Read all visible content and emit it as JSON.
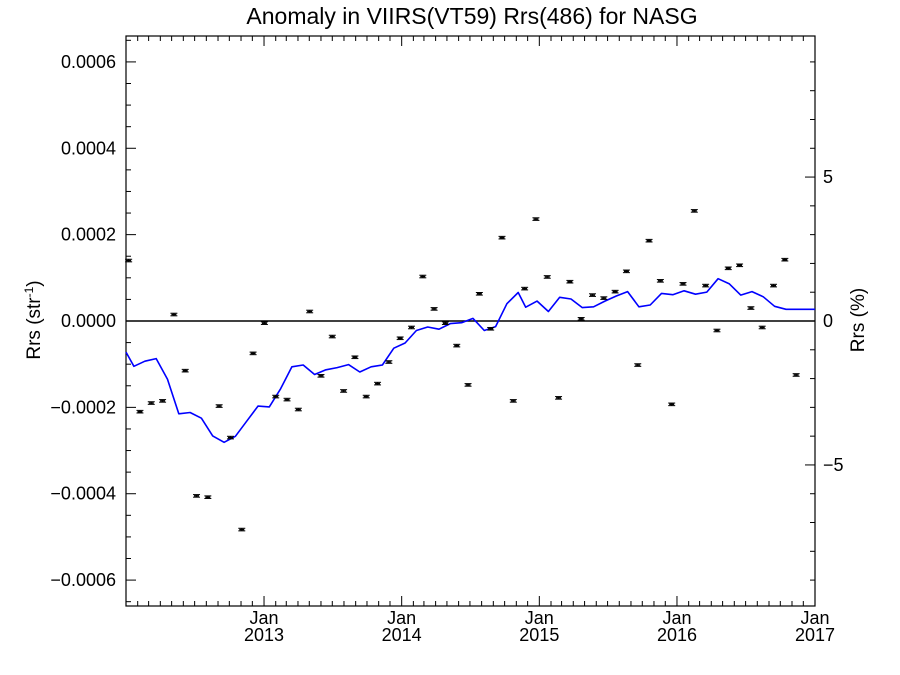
{
  "chart_data": {
    "type": "scatter",
    "title": "Anomaly in VIIRS(VT59) Rrs(486) for NASG",
    "ylabel": "Rrs (str",
    "ylabel_superscript": "-1",
    "ylabel_close": ")",
    "y2label": "Rrs (%)",
    "xlim": [
      "2012-01-01",
      "2017-01-01"
    ],
    "ylim": [
      -0.00066,
      0.00066
    ],
    "y2lim": [
      -9.9,
      9.9
    ],
    "yticks": [
      {
        "value": -0.0006,
        "label": "−0.0006"
      },
      {
        "value": -0.0004,
        "label": "−0.0004"
      },
      {
        "value": -0.0002,
        "label": "−0.0002"
      },
      {
        "value": 0.0,
        "label": "0.0000"
      },
      {
        "value": 0.0002,
        "label": "0.0002"
      },
      {
        "value": 0.0004,
        "label": "0.0004"
      },
      {
        "value": 0.0006,
        "label": "0.0006"
      }
    ],
    "y2ticks": [
      {
        "value": -5,
        "label": "−5"
      },
      {
        "value": 0,
        "label": "0"
      },
      {
        "value": 5,
        "label": "5"
      }
    ],
    "xticks": [
      {
        "value": "2013-01-01",
        "month": "Jan",
        "year": "2013"
      },
      {
        "value": "2014-01-01",
        "month": "Jan",
        "year": "2014"
      },
      {
        "value": "2015-01-01",
        "month": "Jan",
        "year": "2015"
      },
      {
        "value": "2016-01-01",
        "month": "Jan",
        "year": "2016"
      },
      {
        "value": "2017-01-01",
        "month": "Jan",
        "year": "2017"
      }
    ],
    "zero_line": true,
    "grid": false,
    "series": [
      {
        "type": "scatter",
        "color": "#000000",
        "errorbar_half": 3e-06,
        "points": [
          {
            "x": "2012-01-08",
            "y": 0.00014
          },
          {
            "x": "2012-02-07",
            "y": -0.00021
          },
          {
            "x": "2012-03-08",
            "y": -0.00019
          },
          {
            "x": "2012-04-07",
            "y": -0.000185
          },
          {
            "x": "2012-05-07",
            "y": 1.5e-05
          },
          {
            "x": "2012-06-06",
            "y": -0.000115
          },
          {
            "x": "2012-07-06",
            "y": -0.000405
          },
          {
            "x": "2012-08-05",
            "y": -0.000408
          },
          {
            "x": "2012-09-04",
            "y": -0.000197
          },
          {
            "x": "2012-10-04",
            "y": -0.00027
          },
          {
            "x": "2012-11-03",
            "y": -0.000483
          },
          {
            "x": "2012-12-03",
            "y": -7.5e-05
          },
          {
            "x": "2013-01-02",
            "y": -5e-06
          },
          {
            "x": "2013-02-01",
            "y": -0.000175
          },
          {
            "x": "2013-03-03",
            "y": -0.000182
          },
          {
            "x": "2013-04-02",
            "y": -0.000205
          },
          {
            "x": "2013-05-02",
            "y": 2.2e-05
          },
          {
            "x": "2013-06-01",
            "y": -0.000127
          },
          {
            "x": "2013-07-01",
            "y": -3.6e-05
          },
          {
            "x": "2013-07-31",
            "y": -0.000162
          },
          {
            "x": "2013-08-30",
            "y": -8.4e-05
          },
          {
            "x": "2013-09-29",
            "y": -0.000175
          },
          {
            "x": "2013-10-29",
            "y": -0.000145
          },
          {
            "x": "2013-11-28",
            "y": -9.5e-05
          },
          {
            "x": "2013-12-28",
            "y": -4e-05
          },
          {
            "x": "2014-01-27",
            "y": -1.5e-05
          },
          {
            "x": "2014-02-26",
            "y": 0.000103
          },
          {
            "x": "2014-03-28",
            "y": 2.8e-05
          },
          {
            "x": "2014-04-27",
            "y": -5e-06
          },
          {
            "x": "2014-05-27",
            "y": -5.7e-05
          },
          {
            "x": "2014-06-26",
            "y": -0.000148
          },
          {
            "x": "2014-07-26",
            "y": 6.3e-05
          },
          {
            "x": "2014-08-25",
            "y": -1.8e-05
          },
          {
            "x": "2014-09-24",
            "y": 0.000193
          },
          {
            "x": "2014-10-24",
            "y": -0.000185
          },
          {
            "x": "2014-11-23",
            "y": 7.5e-05
          },
          {
            "x": "2014-12-23",
            "y": 0.000236
          },
          {
            "x": "2015-01-22",
            "y": 0.000102
          },
          {
            "x": "2015-02-21",
            "y": -0.000178
          },
          {
            "x": "2015-03-23",
            "y": 9.1e-05
          },
          {
            "x": "2015-04-22",
            "y": 5e-06
          },
          {
            "x": "2015-05-22",
            "y": 6e-05
          },
          {
            "x": "2015-06-21",
            "y": 5.3e-05
          },
          {
            "x": "2015-07-21",
            "y": 6.8e-05
          },
          {
            "x": "2015-08-20",
            "y": 0.000115
          },
          {
            "x": "2015-09-19",
            "y": -0.000102
          },
          {
            "x": "2015-10-19",
            "y": 0.000186
          },
          {
            "x": "2015-11-18",
            "y": 9.3e-05
          },
          {
            "x": "2015-12-18",
            "y": -0.000193
          },
          {
            "x": "2016-01-17",
            "y": 8.6e-05
          },
          {
            "x": "2016-02-16",
            "y": 0.000255
          },
          {
            "x": "2016-03-17",
            "y": 8.2e-05
          },
          {
            "x": "2016-04-16",
            "y": -2.2e-05
          },
          {
            "x": "2016-05-16",
            "y": 0.000122
          },
          {
            "x": "2016-06-15",
            "y": 0.000129
          },
          {
            "x": "2016-07-15",
            "y": 3e-05
          },
          {
            "x": "2016-08-14",
            "y": -1.5e-05
          },
          {
            "x": "2016-09-13",
            "y": 8.2e-05
          },
          {
            "x": "2016-10-13",
            "y": 0.000142
          },
          {
            "x": "2016-11-12",
            "y": -0.000125
          }
        ]
      },
      {
        "type": "line",
        "color": "#0000ff",
        "points": [
          {
            "x": "2012-01-01",
            "y": -7.2e-05
          },
          {
            "x": "2012-01-22",
            "y": -0.000105
          },
          {
            "x": "2012-02-20",
            "y": -9.3e-05
          },
          {
            "x": "2012-03-21",
            "y": -8.7e-05
          },
          {
            "x": "2012-04-20",
            "y": -0.000135
          },
          {
            "x": "2012-05-20",
            "y": -0.000215
          },
          {
            "x": "2012-06-19",
            "y": -0.000212
          },
          {
            "x": "2012-07-19",
            "y": -0.000225
          },
          {
            "x": "2012-08-18",
            "y": -0.000266
          },
          {
            "x": "2012-09-17",
            "y": -0.000281
          },
          {
            "x": "2012-10-17",
            "y": -0.000267
          },
          {
            "x": "2012-11-16",
            "y": -0.000232
          },
          {
            "x": "2012-12-16",
            "y": -0.000197
          },
          {
            "x": "2013-01-15",
            "y": -0.000199
          },
          {
            "x": "2013-02-14",
            "y": -0.000157
          },
          {
            "x": "2013-03-16",
            "y": -0.000106
          },
          {
            "x": "2013-04-15",
            "y": -0.000102
          },
          {
            "x": "2013-05-15",
            "y": -0.000124
          },
          {
            "x": "2013-06-14",
            "y": -0.000113
          },
          {
            "x": "2013-07-14",
            "y": -0.000108
          },
          {
            "x": "2013-08-13",
            "y": -0.000101
          },
          {
            "x": "2013-09-12",
            "y": -0.000118
          },
          {
            "x": "2013-10-12",
            "y": -0.000106
          },
          {
            "x": "2013-11-11",
            "y": -0.000102
          },
          {
            "x": "2013-12-11",
            "y": -6.3e-05
          },
          {
            "x": "2014-01-10",
            "y": -5.1e-05
          },
          {
            "x": "2014-02-09",
            "y": -2.2e-05
          },
          {
            "x": "2014-03-11",
            "y": -1.4e-05
          },
          {
            "x": "2014-04-10",
            "y": -1.9e-05
          },
          {
            "x": "2014-05-10",
            "y": -6e-06
          },
          {
            "x": "2014-06-09",
            "y": -4e-06
          },
          {
            "x": "2014-07-09",
            "y": 6e-06
          },
          {
            "x": "2014-08-08",
            "y": -2.2e-05
          },
          {
            "x": "2014-09-07",
            "y": -1.3e-05
          },
          {
            "x": "2014-10-07",
            "y": 4e-05
          },
          {
            "x": "2014-11-06",
            "y": 6.6e-05
          },
          {
            "x": "2014-11-26",
            "y": 3.2e-05
          },
          {
            "x": "2014-12-26",
            "y": 4.6e-05
          },
          {
            "x": "2015-01-25",
            "y": 2.2e-05
          },
          {
            "x": "2015-02-24",
            "y": 5.5e-05
          },
          {
            "x": "2015-03-26",
            "y": 5.1e-05
          },
          {
            "x": "2015-04-25",
            "y": 3.1e-05
          },
          {
            "x": "2015-05-25",
            "y": 3.3e-05
          },
          {
            "x": "2015-06-24",
            "y": 4.6e-05
          },
          {
            "x": "2015-07-24",
            "y": 5.8e-05
          },
          {
            "x": "2015-08-23",
            "y": 6.8e-05
          },
          {
            "x": "2015-09-22",
            "y": 3.3e-05
          },
          {
            "x": "2015-10-22",
            "y": 3.7e-05
          },
          {
            "x": "2015-11-21",
            "y": 6.4e-05
          },
          {
            "x": "2015-12-21",
            "y": 6.1e-05
          },
          {
            "x": "2016-01-20",
            "y": 7e-05
          },
          {
            "x": "2016-02-19",
            "y": 6.2e-05
          },
          {
            "x": "2016-03-20",
            "y": 6.7e-05
          },
          {
            "x": "2016-04-19",
            "y": 9.8e-05
          },
          {
            "x": "2016-05-19",
            "y": 8.6e-05
          },
          {
            "x": "2016-06-18",
            "y": 6e-05
          },
          {
            "x": "2016-07-18",
            "y": 6.8e-05
          },
          {
            "x": "2016-08-17",
            "y": 5.6e-05
          },
          {
            "x": "2016-09-16",
            "y": 3.4e-05
          },
          {
            "x": "2016-10-16",
            "y": 2.7e-05
          },
          {
            "x": "2017-01-01",
            "y": 2.7e-05
          }
        ]
      }
    ]
  }
}
